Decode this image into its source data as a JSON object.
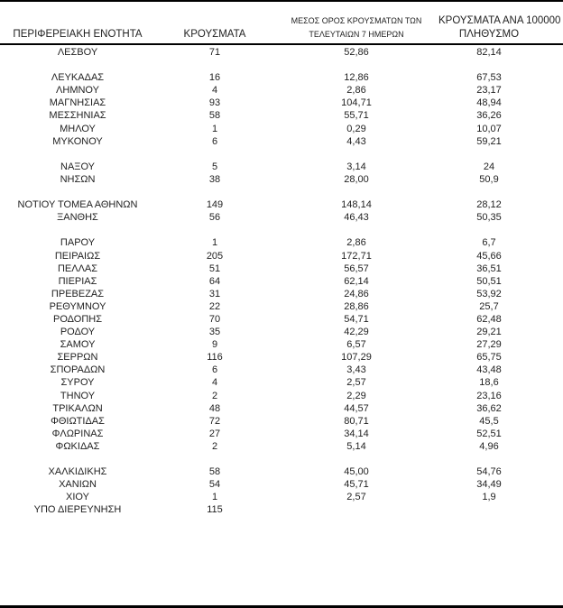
{
  "table": {
    "headers": {
      "col1": "ΠΕΡΙΦΕΡΕΙΑΚΗ ΕΝΟΤΗΤΑ",
      "col2": "ΚΡΟΥΣΜΑΤΑ",
      "col3_line1": "ΜΕΣΟΣ ΟΡΟΣ ΚΡΟΥΣΜΑΤΩΝ ΤΩΝ",
      "col3_line2": "ΤΕΛΕΥΤΑΙΩΝ 7 ΗΜΕΡΩΝ",
      "col4_line1": "ΚΡΟΥΣΜΑΤΑ ΑΝΑ 100000",
      "col4_line2": "ΠΛΗΘΥΣΜΟ"
    },
    "groups": [
      [
        {
          "name": "ΛΕΣΒΟΥ",
          "cases": "71",
          "avg7": "52,86",
          "per100k": "82,14"
        }
      ],
      [
        {
          "name": "ΛΕΥΚΑΔΑΣ",
          "cases": "16",
          "avg7": "12,86",
          "per100k": "67,53"
        },
        {
          "name": "ΛΗΜΝΟΥ",
          "cases": "4",
          "avg7": "2,86",
          "per100k": "23,17"
        },
        {
          "name": "ΜΑΓΝΗΣΙΑΣ",
          "cases": "93",
          "avg7": "104,71",
          "per100k": "48,94"
        },
        {
          "name": "ΜΕΣΣΗΝΙΑΣ",
          "cases": "58",
          "avg7": "55,71",
          "per100k": "36,26"
        },
        {
          "name": "ΜΗΛΟΥ",
          "cases": "1",
          "avg7": "0,29",
          "per100k": "10,07"
        },
        {
          "name": "ΜΥΚΟΝΟΥ",
          "cases": "6",
          "avg7": "4,43",
          "per100k": "59,21"
        }
      ],
      [
        {
          "name": "ΝΑΞΟΥ",
          "cases": "5",
          "avg7": "3,14",
          "per100k": "24"
        },
        {
          "name": "ΝΗΣΩΝ",
          "cases": "38",
          "avg7": "28,00",
          "per100k": "50,9"
        }
      ],
      [
        {
          "name": "ΝΟΤΙΟΥ ΤΟΜΕΑ ΑΘΗΝΩΝ",
          "cases": "149",
          "avg7": "148,14",
          "per100k": "28,12"
        },
        {
          "name": "ΞΑΝΘΗΣ",
          "cases": "56",
          "avg7": "46,43",
          "per100k": "50,35"
        }
      ],
      [
        {
          "name": "ΠΑΡΟΥ",
          "cases": "1",
          "avg7": "2,86",
          "per100k": "6,7"
        },
        {
          "name": "ΠΕΙΡΑΙΩΣ",
          "cases": "205",
          "avg7": "172,71",
          "per100k": "45,66"
        },
        {
          "name": "ΠΕΛΛΑΣ",
          "cases": "51",
          "avg7": "56,57",
          "per100k": "36,51"
        },
        {
          "name": "ΠΙΕΡΙΑΣ",
          "cases": "64",
          "avg7": "62,14",
          "per100k": "50,51"
        },
        {
          "name": "ΠΡΕΒΕΖΑΣ",
          "cases": "31",
          "avg7": "24,86",
          "per100k": "53,92"
        },
        {
          "name": "ΡΕΘΥΜΝΟΥ",
          "cases": "22",
          "avg7": "28,86",
          "per100k": "25,7"
        },
        {
          "name": "ΡΟΔΟΠΗΣ",
          "cases": "70",
          "avg7": "54,71",
          "per100k": "62,48"
        },
        {
          "name": "ΡΟΔΟΥ",
          "cases": "35",
          "avg7": "42,29",
          "per100k": "29,21"
        },
        {
          "name": "ΣΑΜΟΥ",
          "cases": "9",
          "avg7": "6,57",
          "per100k": "27,29"
        },
        {
          "name": "ΣΕΡΡΩΝ",
          "cases": "116",
          "avg7": "107,29",
          "per100k": "65,75"
        },
        {
          "name": "ΣΠΟΡΑΔΩΝ",
          "cases": "6",
          "avg7": "3,43",
          "per100k": "43,48"
        },
        {
          "name": "ΣΥΡΟΥ",
          "cases": "4",
          "avg7": "2,57",
          "per100k": "18,6"
        },
        {
          "name": "ΤΗΝΟΥ",
          "cases": "2",
          "avg7": "2,29",
          "per100k": "23,16"
        },
        {
          "name": "ΤΡΙΚΑΛΩΝ",
          "cases": "48",
          "avg7": "44,57",
          "per100k": "36,62"
        },
        {
          "name": "ΦΘΙΩΤΙΔΑΣ",
          "cases": "72",
          "avg7": "80,71",
          "per100k": "45,5"
        },
        {
          "name": "ΦΛΩΡΙΝΑΣ",
          "cases": "27",
          "avg7": "34,14",
          "per100k": "52,51"
        },
        {
          "name": "ΦΩΚΙΔΑΣ",
          "cases": "2",
          "avg7": "5,14",
          "per100k": "4,96"
        }
      ],
      [
        {
          "name": "ΧΑΛΚΙΔΙΚΗΣ",
          "cases": "58",
          "avg7": "45,00",
          "per100k": "54,76"
        },
        {
          "name": "ΧΑΝΙΩΝ",
          "cases": "54",
          "avg7": "45,71",
          "per100k": "34,49"
        },
        {
          "name": "ΧΙΟΥ",
          "cases": "1",
          "avg7": "2,57",
          "per100k": "1,9"
        },
        {
          "name": "ΥΠΟ ΔΙΕΡΕΥΝΗΣΗ",
          "cases": "115",
          "avg7": "",
          "per100k": ""
        }
      ]
    ]
  },
  "colors": {
    "text": "#1f1f1f",
    "line": "#000000",
    "background": "#ffffff"
  }
}
